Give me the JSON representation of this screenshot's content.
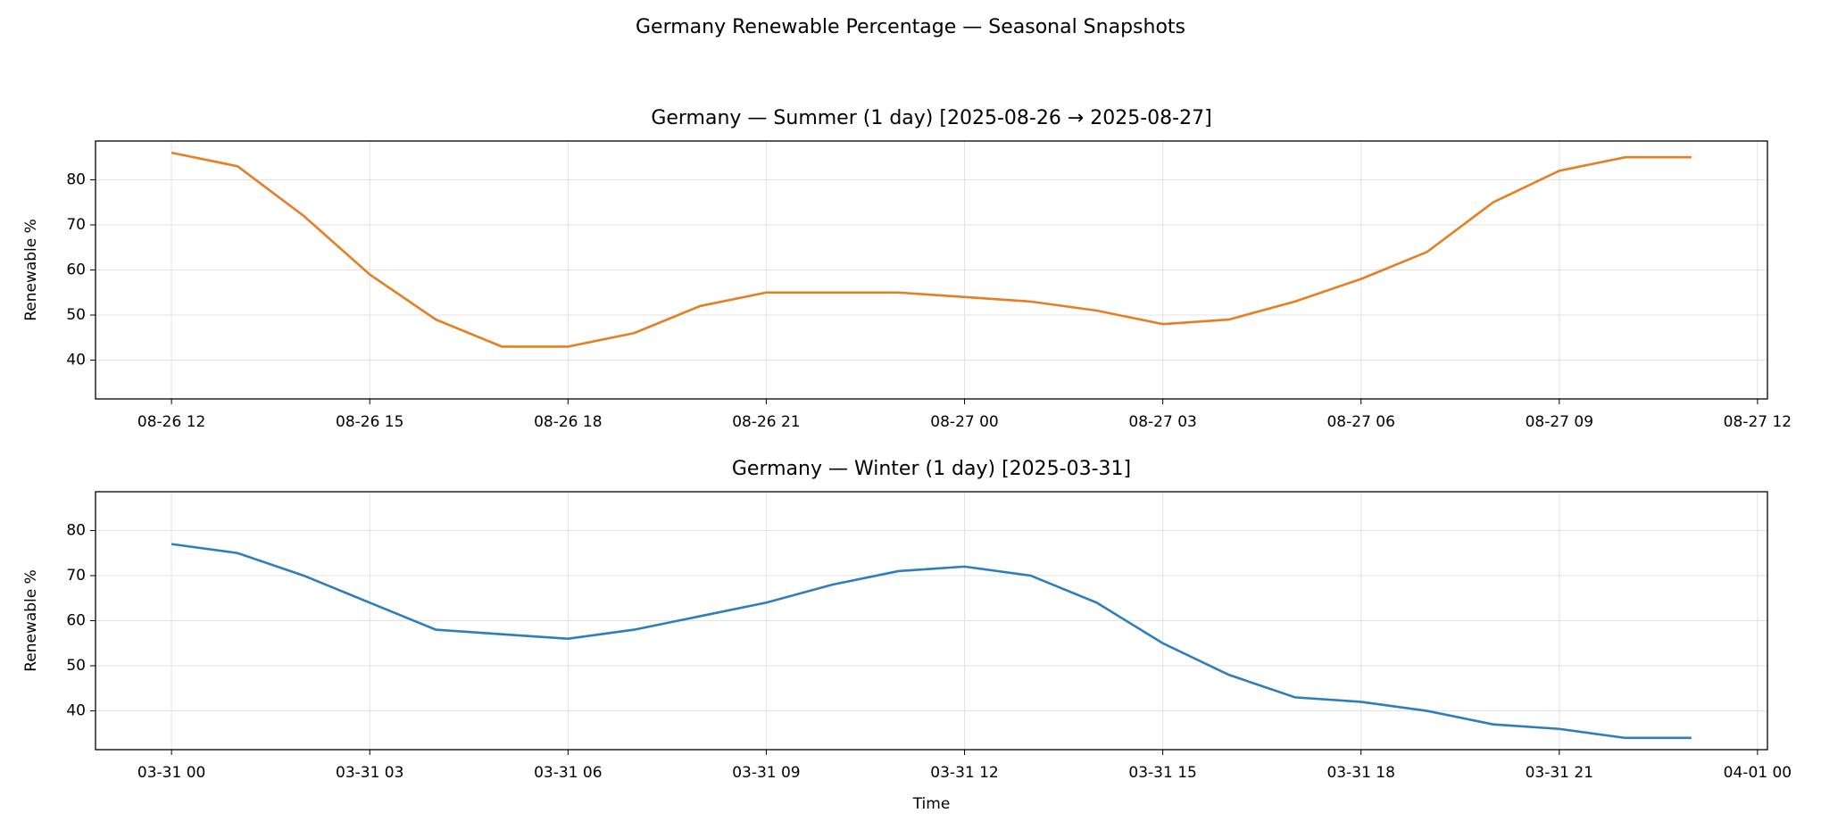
{
  "title": "Germany Renewable Percentage — Seasonal Snapshots",
  "chart_data": [
    {
      "type": "line",
      "title": "Germany — Summer (1 day)  [2025-08-26 → 2025-08-27]",
      "ylabel": "Renewable %",
      "color": "#e67e22",
      "grid": true,
      "x": [
        "08-26 12",
        "08-26 13",
        "08-26 14",
        "08-26 15",
        "08-26 16",
        "08-26 17",
        "08-26 18",
        "08-26 19",
        "08-26 20",
        "08-26 21",
        "08-26 22",
        "08-26 23",
        "08-27 00",
        "08-27 01",
        "08-27 02",
        "08-27 03",
        "08-27 04",
        "08-27 05",
        "08-27 06",
        "08-27 07",
        "08-27 08",
        "08-27 09",
        "08-27 10",
        "08-27 11"
      ],
      "values": [
        86,
        83,
        72,
        59,
        49,
        43,
        43,
        46,
        52,
        55,
        55,
        55,
        54,
        53,
        51,
        48,
        49,
        53,
        58,
        64,
        75,
        82,
        85,
        85
      ],
      "xlim": [
        "08-26 10:51",
        "08-27 12:09"
      ],
      "xticks": [
        "08-26 12",
        "08-26 15",
        "08-26 18",
        "08-26 21",
        "08-27 00",
        "08-27 03",
        "08-27 06",
        "08-27 09",
        "08-27 12"
      ],
      "ylim": [
        31.4,
        88.6
      ],
      "yticks": [
        40,
        50,
        60,
        70,
        80
      ]
    },
    {
      "type": "line",
      "title": "Germany — Winter (1 day)  [2025-03-31]",
      "ylabel": "Renewable %",
      "xlabel": "Time",
      "color": "#2e7ebc",
      "grid": true,
      "x": [
        "03-31 00",
        "03-31 01",
        "03-31 02",
        "03-31 03",
        "03-31 04",
        "03-31 05",
        "03-31 06",
        "03-31 07",
        "03-31 08",
        "03-31 09",
        "03-31 10",
        "03-31 11",
        "03-31 12",
        "03-31 13",
        "03-31 14",
        "03-31 15",
        "03-31 16",
        "03-31 17",
        "03-31 18",
        "03-31 19",
        "03-31 20",
        "03-31 21",
        "03-31 22",
        "03-31 23"
      ],
      "values": [
        77,
        75,
        70,
        64,
        58,
        57,
        56,
        58,
        61,
        64,
        68,
        71,
        72,
        70,
        64,
        55,
        48,
        43,
        42,
        40,
        37,
        36,
        34,
        34
      ],
      "xlim": [
        "03-30 22:51",
        "04-01 00:09"
      ],
      "xticks": [
        "03-31 00",
        "03-31 03",
        "03-31 06",
        "03-31 09",
        "03-31 12",
        "03-31 15",
        "03-31 18",
        "03-31 21",
        "04-01 00"
      ],
      "ylim": [
        31.4,
        88.6
      ],
      "yticks": [
        40,
        50,
        60,
        70,
        80
      ]
    }
  ]
}
